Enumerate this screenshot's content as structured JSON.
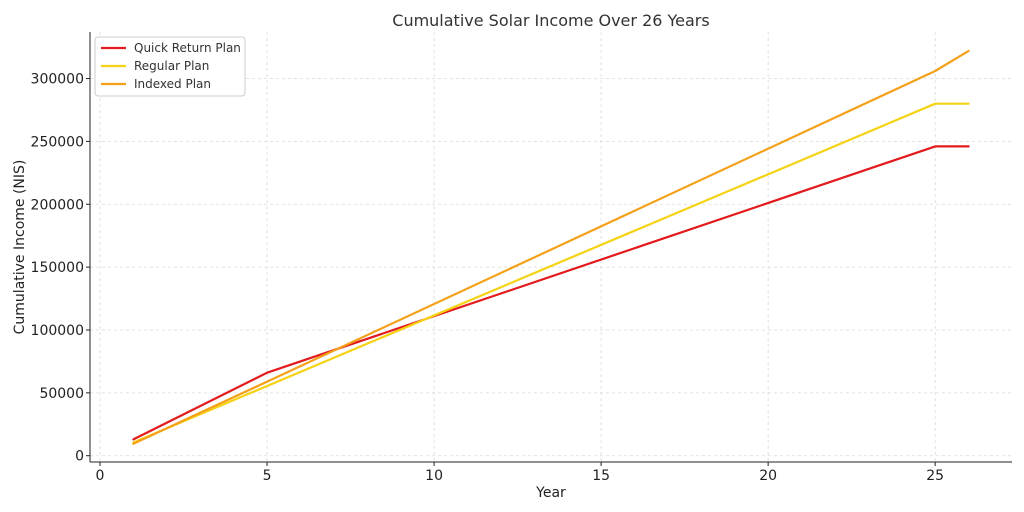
{
  "chart_data": {
    "type": "line",
    "title": "Cumulative Solar Income Over 26 Years",
    "xlabel": "Year",
    "ylabel": "Cumulative Income (NIS)",
    "xlim": [
      -0.3,
      27.3
    ],
    "ylim": [
      -5000,
      337000
    ],
    "xticks": [
      0,
      5,
      10,
      15,
      20,
      25
    ],
    "yticks": [
      0,
      50000,
      100000,
      150000,
      200000,
      250000,
      300000
    ],
    "grid": true,
    "legend_position": "top-left",
    "series": [
      {
        "name": "Quick Return Plan",
        "color": "#e31a1c",
        "x": [
          1,
          5,
          25,
          26
        ],
        "y": [
          13000,
          66000,
          246000,
          246000
        ]
      },
      {
        "name": "Regular Plan",
        "color": "#f5d214",
        "x": [
          1,
          25,
          26
        ],
        "y": [
          10500,
          280000,
          280000
        ]
      },
      {
        "name": "Indexed Plan",
        "color": "#f4a11a",
        "x": [
          1,
          25,
          26
        ],
        "y": [
          9500,
          306000,
          322000
        ]
      }
    ]
  }
}
